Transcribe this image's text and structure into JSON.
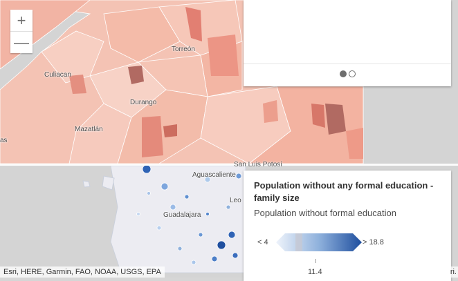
{
  "map": {
    "cities": [
      {
        "name": "Torreón"
      },
      {
        "name": "Culiacan"
      },
      {
        "name": "Durango"
      },
      {
        "name": "Mazatlán"
      },
      {
        "name": "as"
      },
      {
        "name": "San Luis Potosí"
      },
      {
        "name": "Aguascaliente"
      },
      {
        "name": "Guadalajara"
      },
      {
        "name": "Leo"
      }
    ],
    "attribution": "Esri, HERE, Garmin, FAO, NOAA, USGS, EPA",
    "attribution_end": "ri."
  },
  "zoom": {
    "in_label": "+",
    "out_label": "—"
  },
  "legend": {
    "title": "Population without any formal education - family size",
    "subtitle": "Population without formal education",
    "low_label": "< 4",
    "high_label": "> 18.8",
    "mid_label": "11.4",
    "colors": {
      "low": "#eef3fb",
      "mid": "#8fb1dc",
      "high": "#1f4f9f",
      "null": "#c8c8d0"
    }
  },
  "carousel": {
    "pages": 2,
    "active": 1
  }
}
